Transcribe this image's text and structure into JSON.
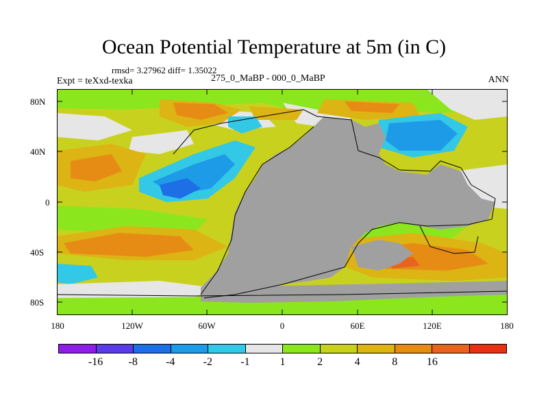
{
  "title": "Ocean Potential Temperature at 5m (in C)",
  "stats": "rmsd= 3.27962 diff= 1.35022",
  "experiment": "Expt = teXxd-texka",
  "subtitle": "275_0_MaBP - 000_0_MaBP",
  "season": "ANN",
  "lat_labels": [
    "80N",
    "40N",
    "0",
    "40S",
    "80S"
  ],
  "lon_labels": [
    "180",
    "120W",
    "60W",
    "0",
    "60E",
    "120E",
    "180"
  ],
  "colorbar": {
    "colors": [
      "#8c1ee6",
      "#5a3ce6",
      "#1e6ee6",
      "#1e9be6",
      "#32c8e6",
      "#e6e6e6",
      "#8ce61e",
      "#c8d21e",
      "#dcb414",
      "#e68c14",
      "#e6641e",
      "#e63214"
    ],
    "labels": [
      "-16",
      "-8",
      "-4",
      "-2",
      "-1",
      "1",
      "2",
      "4",
      "8",
      "16"
    ]
  },
  "land_color": "#a0a0a0"
}
